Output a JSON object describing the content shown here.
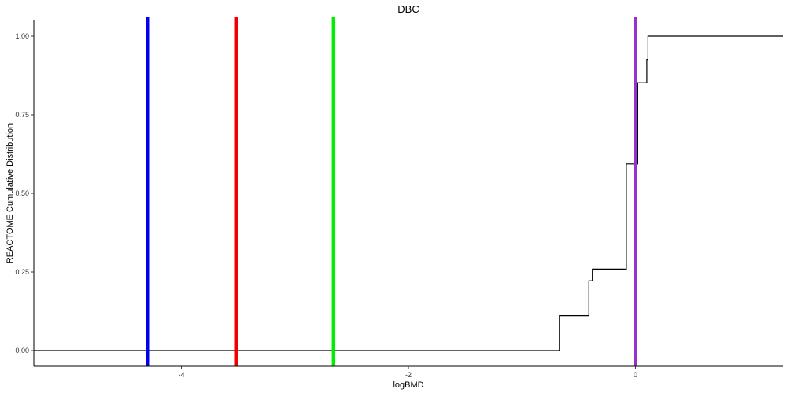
{
  "chart_data": {
    "type": "line",
    "title": "DBC",
    "xlabel": "logBMD",
    "ylabel": "REACTOME Cumulative Distribution",
    "xlim": [
      -5.3,
      1.3
    ],
    "ylim": [
      -0.05,
      1.05
    ],
    "x_ticks": [
      {
        "value": -4,
        "label": "-4"
      },
      {
        "value": -2,
        "label": "-2"
      },
      {
        "value": 0,
        "label": "0"
      }
    ],
    "y_ticks": [
      {
        "value": 0.0,
        "label": "0.00"
      },
      {
        "value": 0.25,
        "label": "0.25"
      },
      {
        "value": 0.5,
        "label": "0.50"
      },
      {
        "value": 0.75,
        "label": "0.75"
      },
      {
        "value": 1.0,
        "label": "1.00"
      }
    ],
    "grid": false,
    "series": [
      {
        "kind": "step",
        "color": "#000000",
        "points": [
          [
            -5.3,
            0.0
          ],
          [
            -0.67,
            0.0
          ],
          [
            -0.67,
            0.111
          ],
          [
            -0.41,
            0.111
          ],
          [
            -0.41,
            0.222
          ],
          [
            -0.38,
            0.222
          ],
          [
            -0.38,
            0.259
          ],
          [
            -0.08,
            0.259
          ],
          [
            -0.08,
            0.593
          ],
          [
            0.02,
            0.593
          ],
          [
            0.02,
            0.852
          ],
          [
            0.1,
            0.852
          ],
          [
            0.1,
            0.926
          ],
          [
            0.11,
            0.926
          ],
          [
            0.11,
            1.0
          ],
          [
            1.3,
            1.0
          ]
        ]
      }
    ],
    "vertical_lines": [
      {
        "x": -4.3,
        "color": "#0000ee"
      },
      {
        "x": -3.52,
        "color": "#ee0000"
      },
      {
        "x": -2.66,
        "color": "#00ee00"
      },
      {
        "x": 0.0,
        "color": "#9932cc"
      }
    ]
  }
}
